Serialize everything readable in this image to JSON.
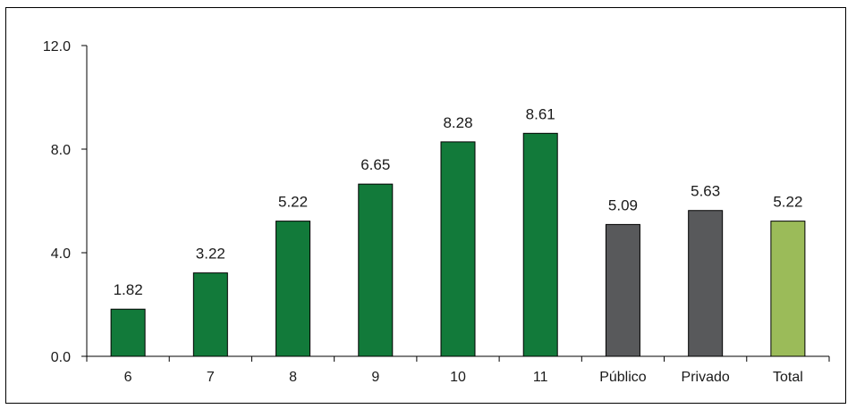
{
  "chart_data": {
    "type": "bar",
    "title": "",
    "xlabel": "",
    "ylabel": "",
    "categories": [
      "6",
      "7",
      "8",
      "9",
      "10",
      "11",
      "Público",
      "Privado",
      "Total"
    ],
    "values": [
      1.82,
      3.22,
      5.22,
      6.65,
      8.28,
      8.61,
      5.09,
      5.63,
      5.22
    ],
    "value_labels": [
      "1.82",
      "3.22",
      "5.22",
      "6.65",
      "8.28",
      "8.61",
      "5.09",
      "5.63",
      "5.22"
    ],
    "bar_colors": [
      "#127a3a",
      "#127a3a",
      "#127a3a",
      "#127a3a",
      "#127a3a",
      "#127a3a",
      "#58595b",
      "#58595b",
      "#9bbb59"
    ],
    "ylim": [
      0,
      12
    ],
    "yticks": [
      0,
      4,
      8,
      12
    ],
    "ytick_labels": [
      "0.0",
      "4.0",
      "8.0",
      "12.0"
    ],
    "grid": false,
    "legend": "none"
  }
}
